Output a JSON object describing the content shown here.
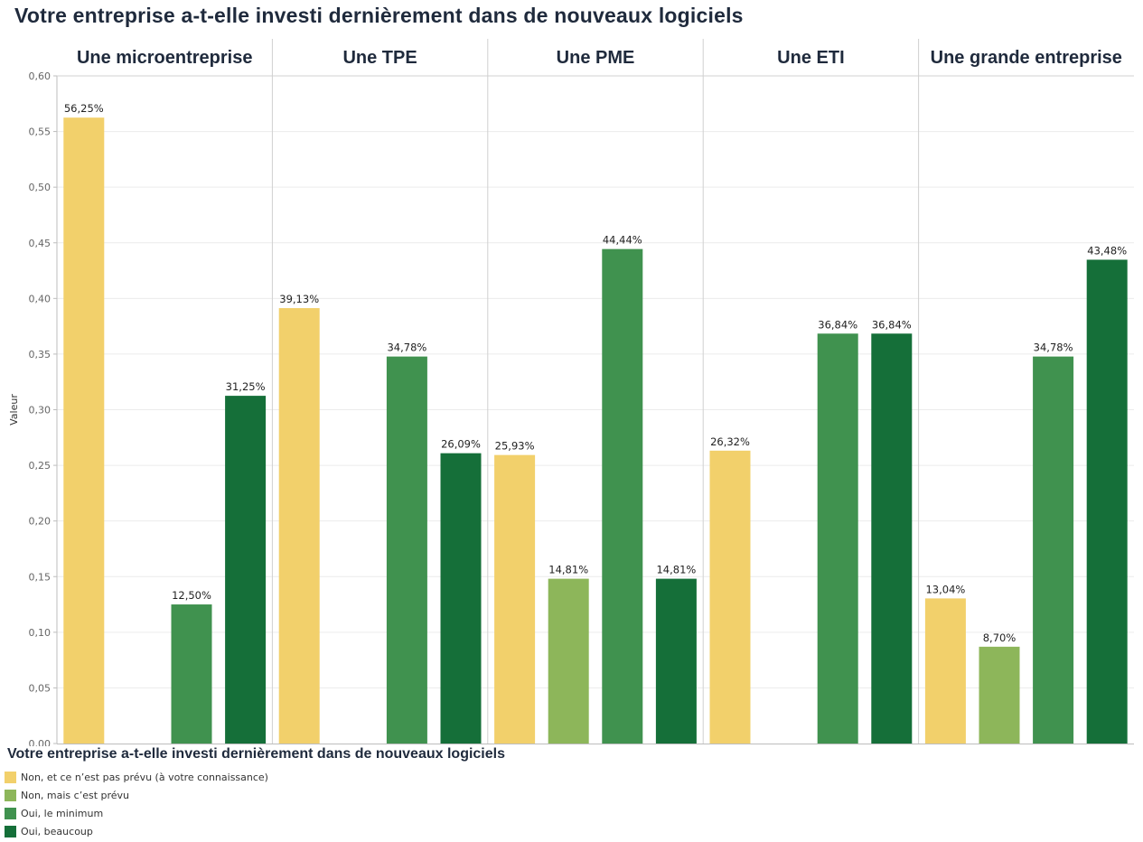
{
  "chart_data": {
    "type": "bar",
    "title": "Votre entreprise a-t-elle investi dernièrement dans de nouveaux logiciels",
    "ylabel": "Valeur",
    "xlabel": "",
    "ylim": [
      0,
      0.6
    ],
    "yticks": [
      "0,00",
      "0,05",
      "0,10",
      "0,15",
      "0,20",
      "0,25",
      "0,30",
      "0,35",
      "0,40",
      "0,45",
      "0,50",
      "0,55",
      "0,60"
    ],
    "grid": true,
    "panels": [
      "Une microentreprise",
      "Une TPE",
      "Une PME",
      "Une ETI",
      "Une grande entreprise"
    ],
    "series": [
      {
        "name": "Non, et ce n'est pas prévu (à votre connaissance)",
        "color": "#f2d06b",
        "values": [
          0.5625,
          0.3913,
          0.2593,
          0.2632,
          0.1304
        ],
        "labels": [
          "56,25%",
          "39,13%",
          "25,93%",
          "26,32%",
          "13,04%"
        ]
      },
      {
        "name": "Non, mais c'est prévu",
        "color": "#8db65a",
        "values": [
          null,
          null,
          0.1481,
          null,
          0.087
        ],
        "labels": [
          "",
          "",
          "14,81%",
          "",
          "8,70%"
        ]
      },
      {
        "name": "Oui, le minimum",
        "color": "#40924f",
        "values": [
          0.125,
          0.3478,
          0.4444,
          0.3684,
          0.3478
        ],
        "labels": [
          "12,50%",
          "34,78%",
          "44,44%",
          "36,84%",
          "34,78%"
        ]
      },
      {
        "name": "Oui, beaucoup",
        "color": "#156f39",
        "values": [
          0.3125,
          0.2609,
          0.1481,
          0.3684,
          0.4348
        ],
        "labels": [
          "31,25%",
          "26,09%",
          "14,81%",
          "36,84%",
          "43,48%"
        ]
      }
    ],
    "legend": {
      "title": "Votre entreprise a-t-elle investi dernièrement dans de nouveaux logiciels",
      "position": "bottom-left",
      "items": [
        {
          "label": "Non, et ce n’est pas prévu (à votre connaissance)",
          "color": "#f2d06b"
        },
        {
          "label": "Non, mais c’est prévu",
          "color": "#8db65a"
        },
        {
          "label": "Oui, le minimum",
          "color": "#40924f"
        },
        {
          "label": "Oui, beaucoup",
          "color": "#156f39"
        }
      ]
    }
  }
}
